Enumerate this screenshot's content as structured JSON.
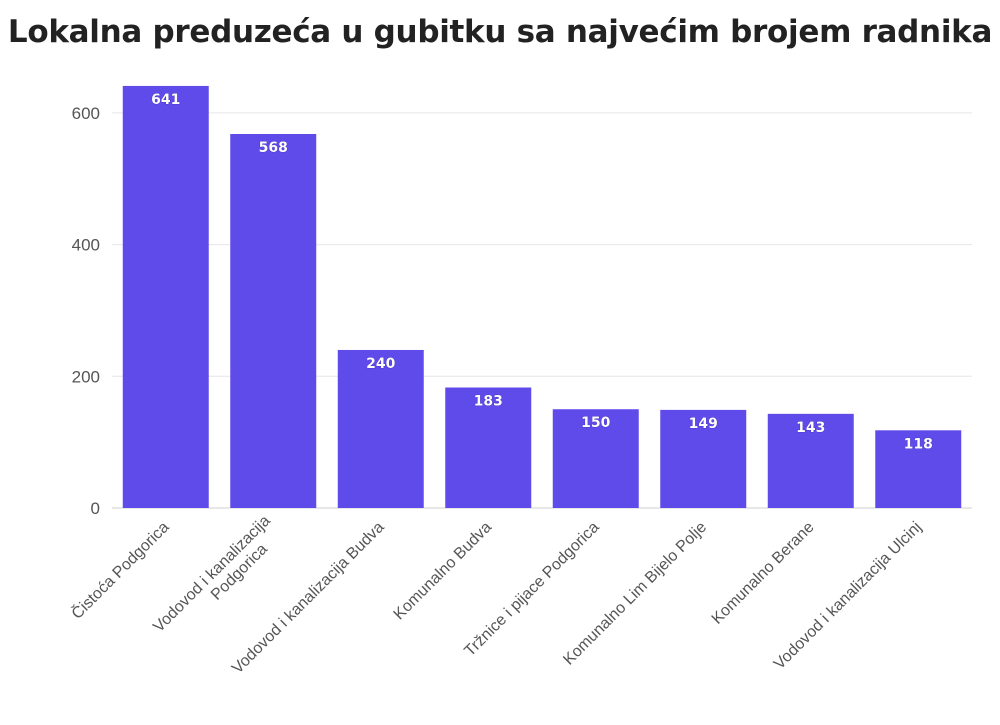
{
  "chart_data": {
    "type": "bar",
    "title": "Lokalna preduzeća u gubitku sa najvećim brojem radnika",
    "xlabel": "",
    "ylabel": "",
    "categories": [
      "Čistoća Podgorica",
      "Vodovod i kanalizacija Podgorica",
      "Vodovod i kanalizacija Budva",
      "Komunalno Budva",
      "Tržnice i pijace Podgorica",
      "Komunalno Lim Bijelo Polje",
      "Komunalno Berane",
      "Vodovod i kanalizacija Ulcinj"
    ],
    "category_label_lines": [
      [
        "Čistoća Podgorica"
      ],
      [
        "Vodovod i kanalizacija",
        "Podgorica"
      ],
      [
        "Vodovod i kanalizacija Budva"
      ],
      [
        "Komunalno Budva"
      ],
      [
        "Tržnice i pijace Podgorica"
      ],
      [
        "Komunalno Lim Bijelo Polje"
      ],
      [
        "Komunalno Berane"
      ],
      [
        "Vodovod i kanalizacija Ulcinj"
      ]
    ],
    "values": [
      641,
      568,
      240,
      183,
      150,
      149,
      143,
      118
    ],
    "ylim": [
      0,
      650
    ],
    "yticks": [
      0,
      200,
      400,
      600
    ],
    "grid": true,
    "bar_color": "#5f4bea",
    "data_labels": true
  }
}
